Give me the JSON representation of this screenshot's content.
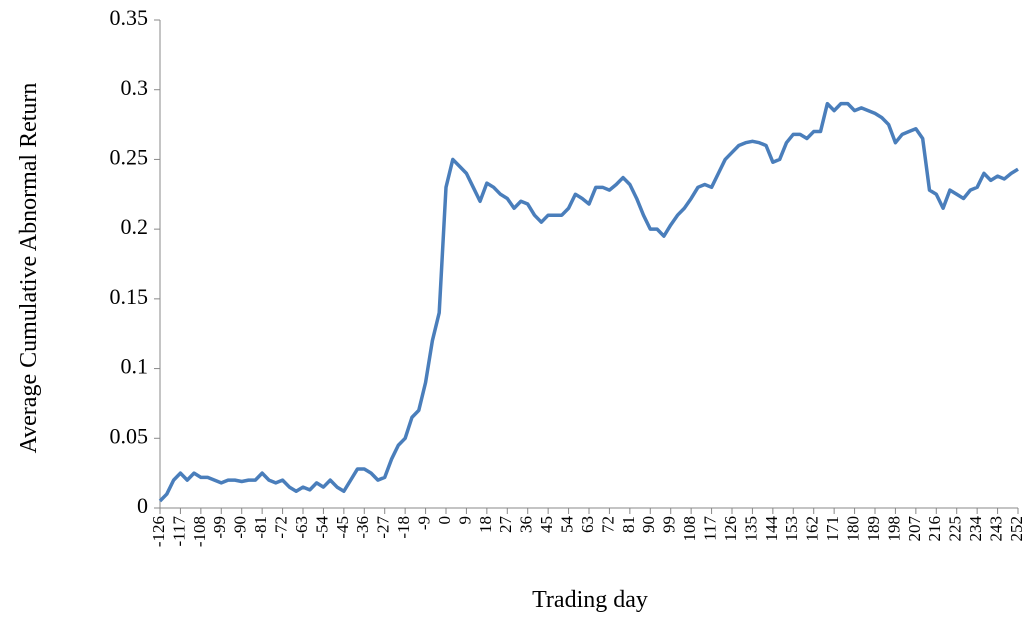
{
  "chart_data": {
    "type": "line",
    "y_label": "Average Cumulative Abnormal Return",
    "x_label": "Trading day",
    "x": [
      -126,
      -123,
      -120,
      -117,
      -114,
      -111,
      -108,
      -105,
      -102,
      -99,
      -96,
      -93,
      -90,
      -87,
      -84,
      -81,
      -78,
      -75,
      -72,
      -69,
      -66,
      -63,
      -60,
      -57,
      -54,
      -51,
      -48,
      -45,
      -42,
      -39,
      -36,
      -33,
      -30,
      -27,
      -24,
      -21,
      -18,
      -15,
      -12,
      -9,
      -6,
      -3,
      0,
      3,
      6,
      9,
      12,
      15,
      18,
      21,
      24,
      27,
      30,
      33,
      36,
      39,
      42,
      45,
      48,
      51,
      54,
      57,
      60,
      63,
      66,
      69,
      72,
      75,
      78,
      81,
      84,
      87,
      90,
      93,
      96,
      99,
      102,
      105,
      108,
      111,
      114,
      117,
      120,
      123,
      126,
      129,
      132,
      135,
      138,
      141,
      144,
      147,
      150,
      153,
      156,
      159,
      162,
      165,
      168,
      171,
      174,
      177,
      180,
      183,
      186,
      189,
      192,
      195,
      198,
      201,
      204,
      207,
      210,
      213,
      216,
      219,
      222,
      225,
      228,
      231,
      234,
      237,
      240,
      243,
      246,
      249,
      252
    ],
    "series": [
      {
        "color": "#4a7ebb",
        "values": [
          0.005,
          0.01,
          0.02,
          0.025,
          0.02,
          0.025,
          0.022,
          0.022,
          0.02,
          0.018,
          0.02,
          0.02,
          0.019,
          0.02,
          0.02,
          0.025,
          0.02,
          0.018,
          0.02,
          0.015,
          0.012,
          0.015,
          0.013,
          0.018,
          0.015,
          0.02,
          0.015,
          0.012,
          0.02,
          0.028,
          0.028,
          0.025,
          0.02,
          0.022,
          0.035,
          0.045,
          0.05,
          0.065,
          0.07,
          0.09,
          0.12,
          0.14,
          0.23,
          0.25,
          0.245,
          0.24,
          0.23,
          0.22,
          0.233,
          0.23,
          0.225,
          0.222,
          0.215,
          0.22,
          0.218,
          0.21,
          0.205,
          0.21,
          0.21,
          0.21,
          0.215,
          0.225,
          0.222,
          0.218,
          0.23,
          0.23,
          0.228,
          0.232,
          0.237,
          0.232,
          0.222,
          0.21,
          0.2,
          0.2,
          0.195,
          0.203,
          0.21,
          0.215,
          0.222,
          0.23,
          0.232,
          0.23,
          0.24,
          0.25,
          0.255,
          0.26,
          0.262,
          0.263,
          0.262,
          0.26,
          0.248,
          0.25,
          0.262,
          0.268,
          0.268,
          0.265,
          0.27,
          0.27,
          0.29,
          0.285,
          0.29,
          0.29,
          0.285,
          0.287,
          0.285,
          0.283,
          0.28,
          0.275,
          0.262,
          0.268,
          0.27,
          0.272,
          0.265,
          0.228,
          0.225,
          0.215,
          0.228,
          0.225,
          0.222,
          0.228,
          0.23,
          0.24,
          0.235,
          0.238,
          0.236,
          0.24,
          0.243
        ]
      }
    ],
    "xlim": [
      -126,
      252
    ],
    "xticks": [
      -126,
      -117,
      -108,
      -99,
      -90,
      -81,
      -72,
      -63,
      -54,
      -45,
      -36,
      -27,
      -18,
      -9,
      0,
      9,
      18,
      27,
      36,
      45,
      54,
      63,
      72,
      81,
      90,
      99,
      108,
      117,
      126,
      135,
      144,
      153,
      162,
      171,
      180,
      189,
      198,
      207,
      216,
      225,
      234,
      243,
      252
    ],
    "ylim": [
      0,
      0.35
    ],
    "yticks": [
      0,
      0.05,
      0.1,
      0.15,
      0.2,
      0.25,
      0.3,
      0.35
    ],
    "grid": false
  }
}
